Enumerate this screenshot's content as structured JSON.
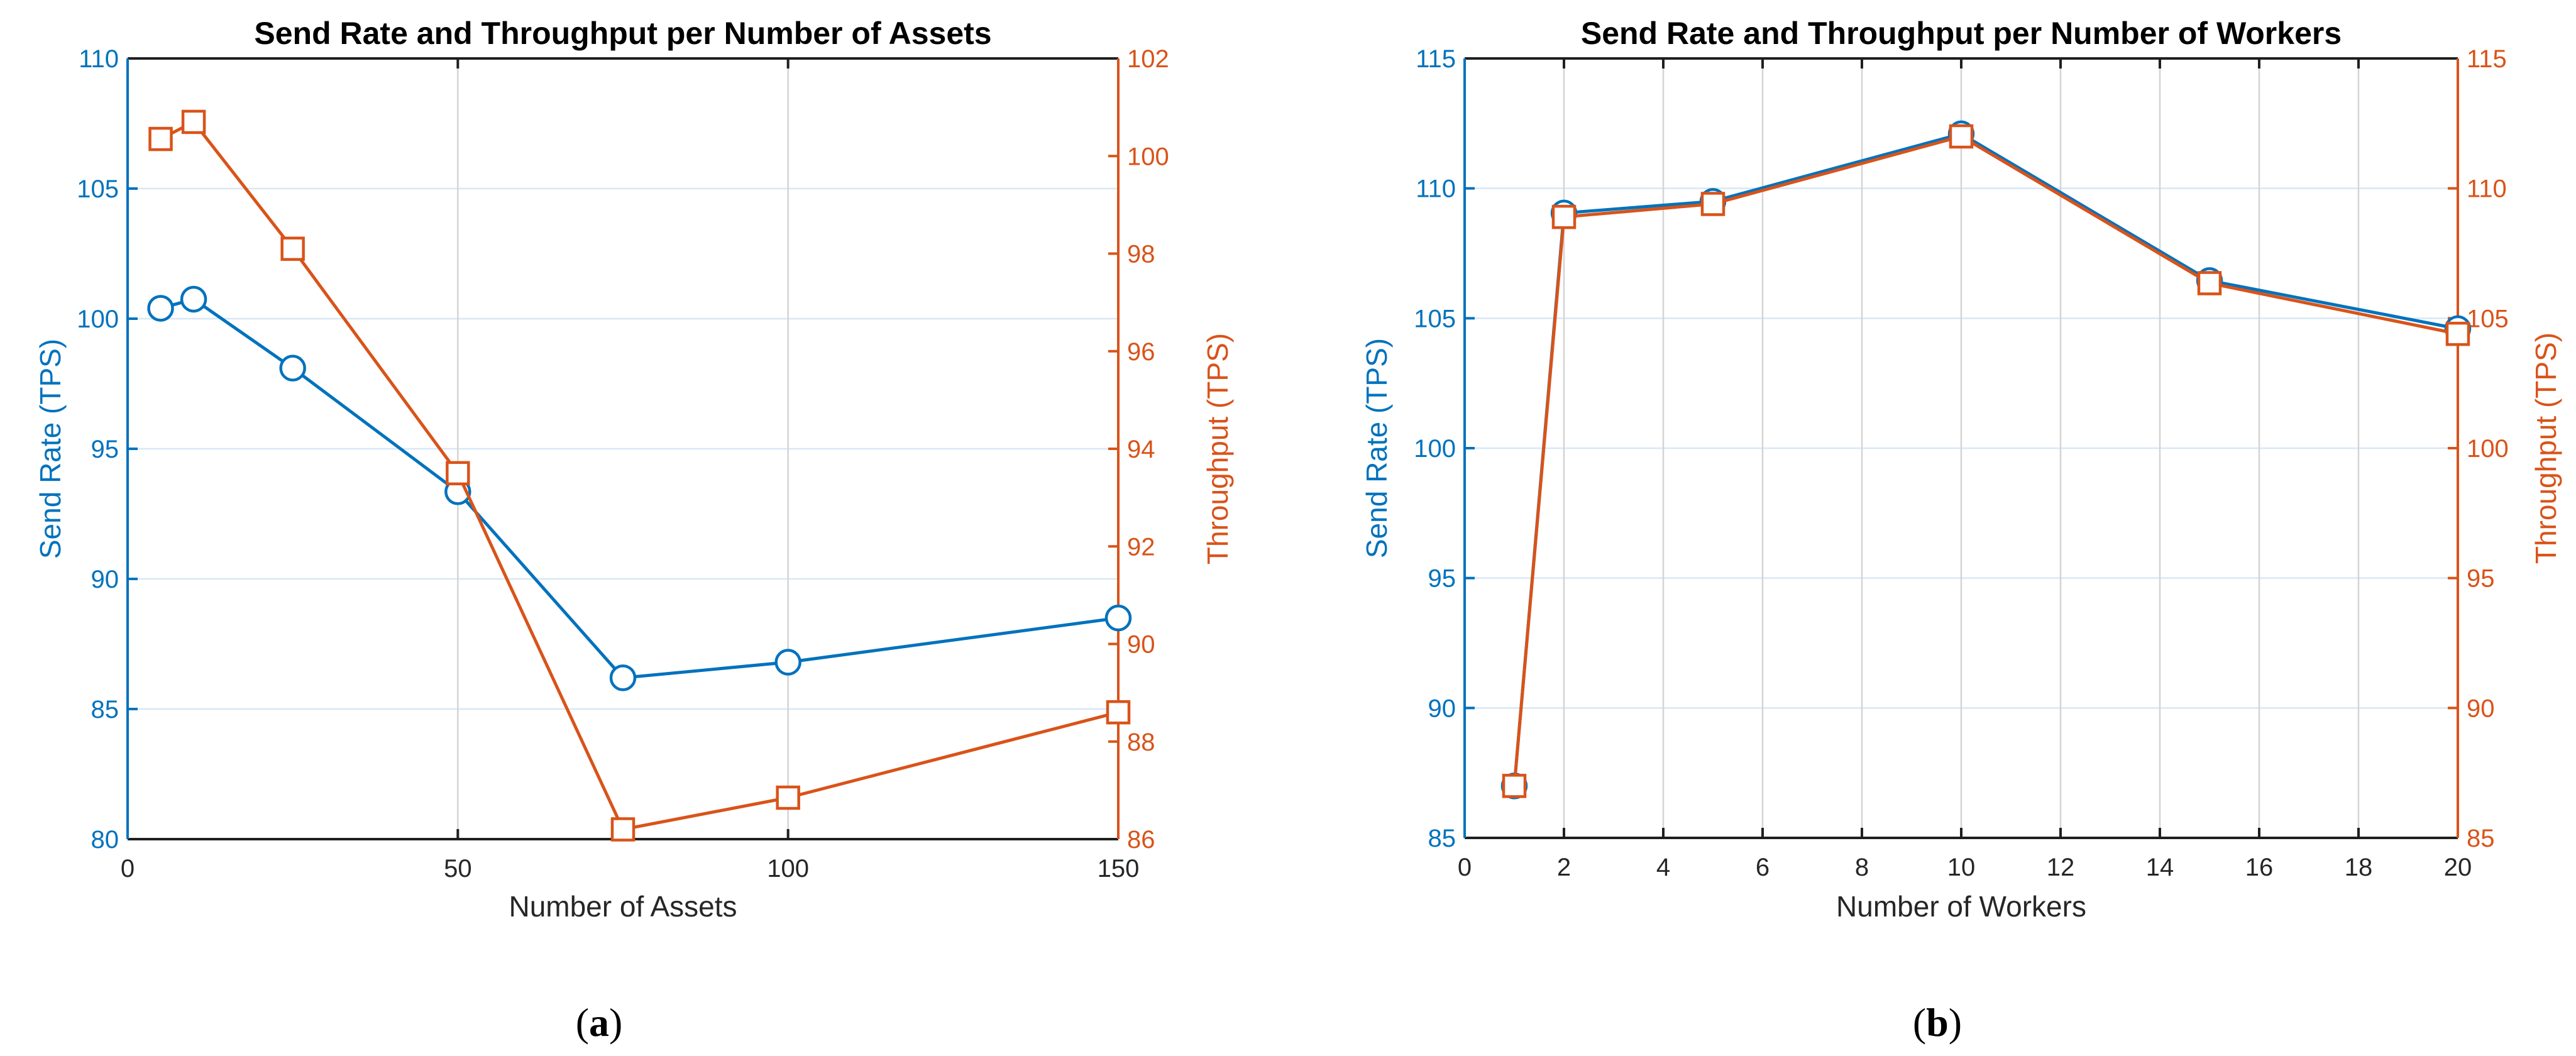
{
  "figure": {
    "background": "#ffffff"
  },
  "colors": {
    "blue": "#0072BD",
    "orange": "#D95319",
    "grid_horizontal": "#d7e8f6",
    "grid_vertical": "#d4d4d4",
    "axis_dark": "#1f1f1f",
    "tick_text_dark": "#262626",
    "title_text": "#000000",
    "marker_fill": "#ffffff"
  },
  "chart_data": [
    {
      "id": "a",
      "type": "line",
      "title": "Send Rate and Throughput per Number of Assets",
      "xlabel": "Number of Assets",
      "ylabel_left": "Send Rate (TPS)",
      "ylabel_right": "Throughput (TPS)",
      "caption": {
        "open": "(",
        "letter": "a",
        "close": ")"
      },
      "grid": true,
      "xlim": [
        0,
        150
      ],
      "xticks": [
        0,
        50,
        100,
        150
      ],
      "ylim_left": [
        80,
        110
      ],
      "yticks_left": [
        80,
        85,
        90,
        95,
        100,
        105,
        110
      ],
      "ylim_right": [
        86,
        102
      ],
      "yticks_right": [
        86,
        88,
        90,
        92,
        94,
        96,
        98,
        100,
        102
      ],
      "x": [
        5,
        10,
        25,
        50,
        75,
        100,
        150
      ],
      "series": [
        {
          "name": "Send Rate (TPS)",
          "axis": "left",
          "marker": "circle",
          "color": "#0072BD",
          "values": [
            100.4,
            100.75,
            98.1,
            93.35,
            86.2,
            86.8,
            88.5
          ]
        },
        {
          "name": "Throughput (TPS)",
          "axis": "right",
          "marker": "square",
          "color": "#D95319",
          "values": [
            100.35,
            100.7,
            98.1,
            93.5,
            86.2,
            86.85,
            88.6
          ]
        }
      ]
    },
    {
      "id": "b",
      "type": "line",
      "title": "Send Rate and Throughput per Number of Workers",
      "xlabel": "Number of Workers",
      "ylabel_left": "Send Rate (TPS)",
      "ylabel_right": "Throughput (TPS)",
      "caption": {
        "open": "(",
        "letter": "b",
        "close": ")"
      },
      "grid": true,
      "xlim": [
        0,
        20
      ],
      "xticks": [
        0,
        2,
        4,
        6,
        8,
        10,
        12,
        14,
        16,
        18,
        20
      ],
      "ylim_left": [
        85,
        115
      ],
      "yticks_left": [
        85,
        90,
        95,
        100,
        105,
        110,
        115
      ],
      "ylim_right": [
        85,
        115
      ],
      "yticks_right": [
        85,
        90,
        95,
        100,
        105,
        110,
        115
      ],
      "x": [
        1,
        2,
        5,
        10,
        15,
        20
      ],
      "series": [
        {
          "name": "Send Rate (TPS)",
          "axis": "left",
          "marker": "circle",
          "color": "#0072BD",
          "values": [
            87.0,
            109.05,
            109.5,
            112.1,
            106.45,
            104.6
          ]
        },
        {
          "name": "Throughput (TPS)",
          "axis": "right",
          "marker": "square",
          "color": "#D95319",
          "values": [
            87.0,
            108.9,
            109.4,
            112.0,
            106.35,
            104.4
          ]
        }
      ]
    }
  ]
}
